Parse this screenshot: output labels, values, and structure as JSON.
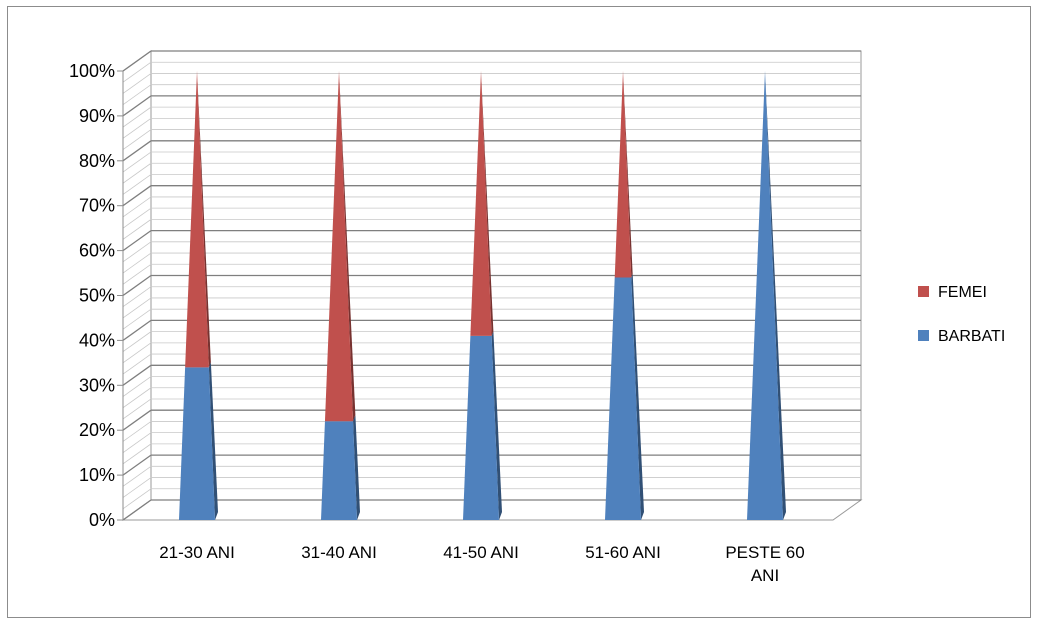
{
  "chart_data": {
    "type": "bar",
    "subtype": "3d-stacked-percent-pyramid",
    "categories": [
      [
        "21-30 ANI"
      ],
      [
        "31-40 ANI"
      ],
      [
        "41-50 ANI"
      ],
      [
        "51-60 ANI"
      ],
      [
        "PESTE 60",
        "ANI"
      ]
    ],
    "series": [
      {
        "name": "BARBATI",
        "color": "#4f81bd",
        "values": [
          34,
          22,
          41,
          54,
          100
        ]
      },
      {
        "name": "FEMEI",
        "color": "#c0504d",
        "values": [
          66,
          78,
          59,
          46,
          0
        ]
      }
    ],
    "ylim": [
      0,
      100
    ],
    "yticks": [
      "0%",
      "10%",
      "20%",
      "30%",
      "40%",
      "50%",
      "60%",
      "70%",
      "80%",
      "90%",
      "100%"
    ],
    "legend_position": "right",
    "legend_order": [
      "FEMEI",
      "BARBATI"
    ],
    "grid": true
  }
}
